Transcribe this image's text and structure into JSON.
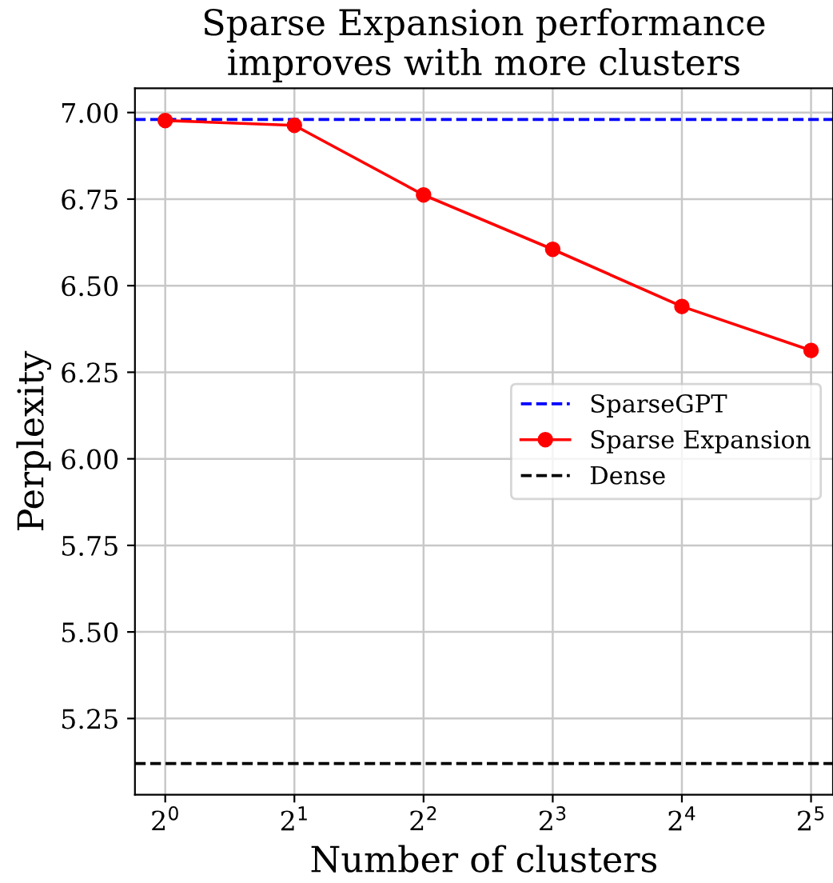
{
  "chart_data": {
    "type": "line",
    "title": "Sparse Expansion performance\nimproves with more clusters",
    "xlabel": "Number of clusters",
    "ylabel": "Perplexity",
    "x": [
      1,
      2,
      4,
      8,
      16,
      32
    ],
    "log": "x",
    "series": [
      {
        "name": "Sparse Expansion",
        "color": "#ff0000",
        "values": [
          6.977,
          6.963,
          6.762,
          6.605,
          6.44,
          6.313
        ]
      }
    ],
    "marker": "circle",
    "line_style": "solid",
    "ref_lines": [
      {
        "axis": "y",
        "value": 6.98,
        "label": "SparseGPT",
        "color": "#0000ff",
        "line_style": "dashed"
      },
      {
        "axis": "y",
        "value": 5.12,
        "label": "Dense",
        "color": "#000000",
        "line_style": "dashed"
      }
    ],
    "xlim": [
      0.85,
      36
    ],
    "ylim": [
      5.03,
      7.07
    ],
    "xticks": [
      {
        "value": 1,
        "label": "2$^{0}$"
      },
      {
        "value": 2,
        "label": "2$^{1}$"
      },
      {
        "value": 4,
        "label": "2$^{2}$"
      },
      {
        "value": 8,
        "label": "2$^{3}$"
      },
      {
        "value": 16,
        "label": "2$^{4}$"
      },
      {
        "value": 32,
        "label": "2$^{5}$"
      }
    ],
    "yticks": [
      {
        "value": 5.25,
        "label": "5.25"
      },
      {
        "value": 5.5,
        "label": "5.50"
      },
      {
        "value": 5.75,
        "label": "5.75"
      },
      {
        "value": 6.0,
        "label": "6.00"
      },
      {
        "value": 6.25,
        "label": "6.25"
      },
      {
        "value": 6.5,
        "label": "6.50"
      },
      {
        "value": 6.75,
        "label": "6.75"
      },
      {
        "value": 7.0,
        "label": "7.00"
      }
    ],
    "grid": true,
    "legend": "center right"
  }
}
